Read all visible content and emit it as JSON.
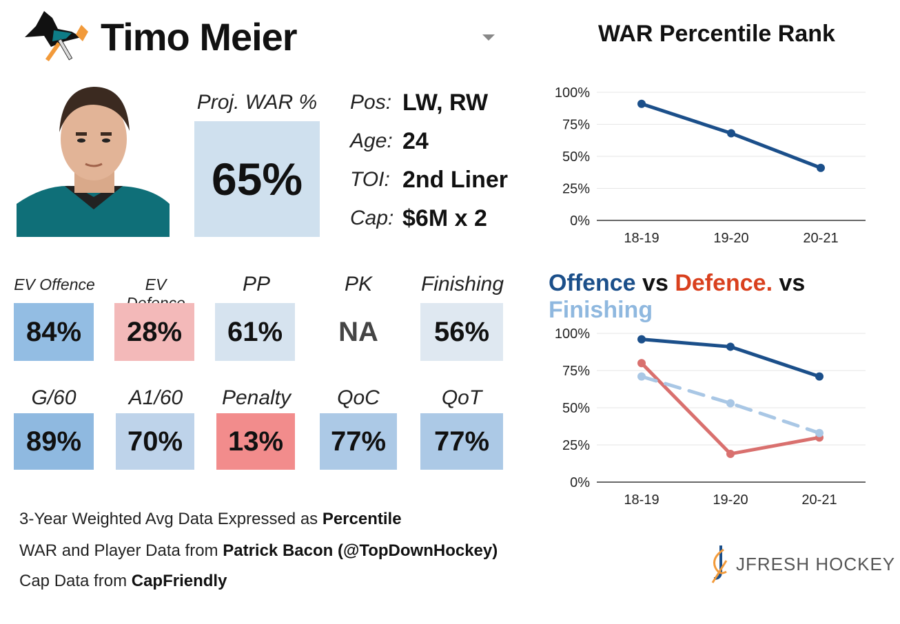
{
  "player": {
    "name": "Timo Meier"
  },
  "projection": {
    "label": "Proj. WAR %",
    "value": "65%"
  },
  "info": [
    {
      "label": "Pos:",
      "value": "LW, RW"
    },
    {
      "label": "Age:",
      "value": "24"
    },
    {
      "label": "TOI:",
      "value": "2nd Liner"
    },
    {
      "label": "Cap:",
      "value": "$6M x 2"
    }
  ],
  "metrics_row1": [
    {
      "label": "EV Offence",
      "value": "84%",
      "color": "#93bde3"
    },
    {
      "label": "EV Defence",
      "value": "28%",
      "color": "#f3b9b9"
    },
    {
      "label": "PP",
      "value": "61%",
      "color": "#d6e3ef"
    },
    {
      "label": "PK",
      "value": "NA",
      "color": "#ffffff"
    },
    {
      "label": "Finishing",
      "value": "56%",
      "color": "#dfe8f1"
    }
  ],
  "metrics_row2": [
    {
      "label": "G/60",
      "value": "89%",
      "color": "#8fb9e0"
    },
    {
      "label": "A1/60",
      "value": "70%",
      "color": "#bed3ea"
    },
    {
      "label": "Penalty",
      "value": "13%",
      "color": "#f28c8c"
    },
    {
      "label": "QoC",
      "value": "77%",
      "color": "#acc9e6"
    },
    {
      "label": "QoT",
      "value": "77%",
      "color": "#acc9e6"
    }
  ],
  "footer": {
    "line1_text": "3-Year Weighted Avg Data Expressed as ",
    "line1_bold": "Percentile",
    "line2_text": "WAR and Player Data from ",
    "line2_bold": "Patrick Bacon (@TopDownHockey)",
    "line3_text": "Cap Data from ",
    "line3_bold": "CapFriendly"
  },
  "brand": {
    "name": "JFRESH HOCKEY"
  },
  "colors": {
    "offence": "#1b4f8a",
    "defence": "#d9706e",
    "finishing": "#a9c7e5",
    "defence_title": "#d9401e"
  },
  "chart_data": [
    {
      "type": "line",
      "title": "WAR Percentile Rank",
      "categories": [
        "18-19",
        "19-20",
        "20-21"
      ],
      "ytick_labels": [
        "100%",
        "75%",
        "50%",
        "25%",
        "0%"
      ],
      "ylim": [
        0,
        100
      ],
      "grid": true,
      "series": [
        {
          "values": [
            91,
            68,
            41
          ],
          "color": "#1b4f8a",
          "dashed": false
        }
      ]
    },
    {
      "type": "line",
      "title_parts": [
        {
          "text": "Offence",
          "color": "#1b4f8a"
        },
        {
          "text": " vs ",
          "color": "#111111"
        },
        {
          "text": "Defence.",
          "color": "#d9401e"
        },
        {
          "text": " vs ",
          "color": "#111111"
        },
        {
          "text": "Finishing",
          "color": "#8fb8df"
        }
      ],
      "categories": [
        "18-19",
        "19-20",
        "20-21"
      ],
      "ytick_labels": [
        "100%",
        "75%",
        "50%",
        "25%",
        "0%"
      ],
      "ylim": [
        0,
        100
      ],
      "grid": true,
      "series": [
        {
          "name": "Offence",
          "values": [
            96,
            91,
            71
          ],
          "color": "#1b4f8a",
          "dashed": false
        },
        {
          "name": "Defence",
          "values": [
            80,
            19,
            30
          ],
          "color": "#d9706e",
          "dashed": false
        },
        {
          "name": "Finishing",
          "values": [
            71,
            53,
            33
          ],
          "color": "#a9c7e5",
          "dashed": true
        }
      ]
    }
  ]
}
